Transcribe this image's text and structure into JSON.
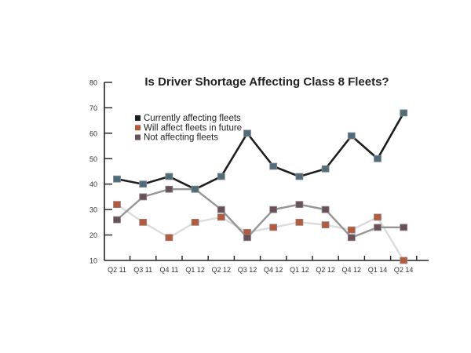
{
  "chart_data": {
    "type": "line",
    "title": "Is Driver Shortage Affecting Class 8 Fleets?",
    "xlabel": "",
    "ylabel": "",
    "ylim": [
      10,
      80
    ],
    "yticks": [
      10,
      20,
      30,
      40,
      50,
      60,
      70,
      80
    ],
    "grid": false,
    "legend_position": "top-left",
    "categories": [
      "Q2 11",
      "Q3 11",
      "Q4 11",
      "Q1 12",
      "Q2 12",
      "Q3 12",
      "Q4 12",
      "Q1 12",
      "Q2 12",
      "Q4 12",
      "Q1 14",
      "Q2 14"
    ],
    "series": [
      {
        "name": "Currently affecting fleets",
        "line_color": "#1e1e1e",
        "marker_color": "#4d6d7d",
        "legend_color": "#1e1e1e",
        "values": [
          42,
          40,
          43,
          38,
          43,
          60,
          47,
          43,
          46,
          59,
          50,
          68
        ]
      },
      {
        "name": "Will affect fleets in future",
        "line_color": "#dcdcdc",
        "marker_color": "#b8593a",
        "legend_color": "#b8593a",
        "values": [
          32,
          25,
          19,
          25,
          27,
          21,
          23,
          25,
          24,
          22,
          27,
          10
        ]
      },
      {
        "name": "Not affecting fleets",
        "line_color": "#969696",
        "marker_color": "#6a5058",
        "legend_color": "#6a5058",
        "values": [
          26,
          35,
          38,
          38,
          30,
          19,
          30,
          32,
          30,
          19,
          23,
          23
        ]
      }
    ]
  }
}
